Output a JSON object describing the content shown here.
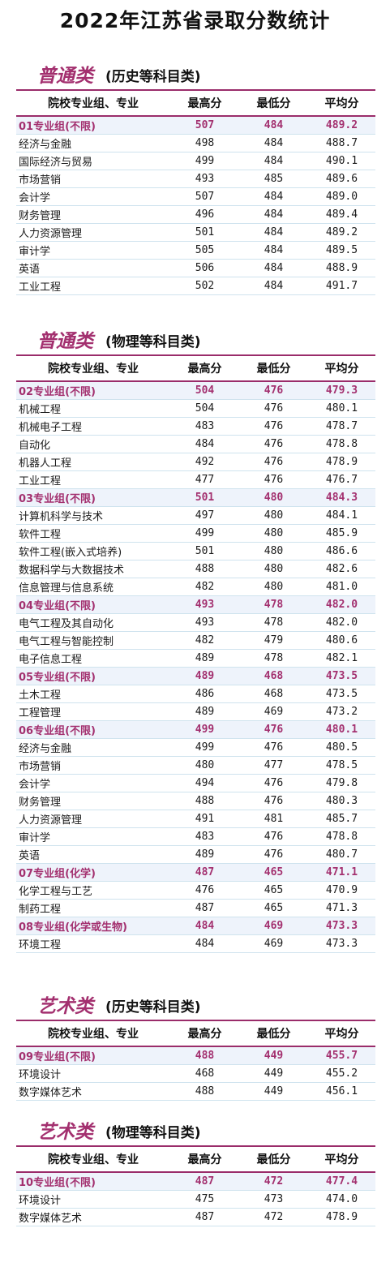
{
  "title": "2022年江苏省录取分数统计",
  "headers": {
    "major": "院校专业组、专业",
    "max": "最高分",
    "min": "最低分",
    "avg": "平均分"
  },
  "sections": [
    {
      "category": "普通类",
      "subject": "(历史等科目类)",
      "rows": [
        {
          "name": "01专业组(不限)",
          "max": "507",
          "min": "484",
          "avg": "489.2",
          "group": true
        },
        {
          "name": "经济与金融",
          "max": "498",
          "min": "484",
          "avg": "488.7"
        },
        {
          "name": "国际经济与贸易",
          "max": "499",
          "min": "484",
          "avg": "490.1"
        },
        {
          "name": "市场营销",
          "max": "493",
          "min": "485",
          "avg": "489.6"
        },
        {
          "name": "会计学",
          "max": "507",
          "min": "484",
          "avg": "489.0"
        },
        {
          "name": "财务管理",
          "max": "496",
          "min": "484",
          "avg": "489.4"
        },
        {
          "name": "人力资源管理",
          "max": "501",
          "min": "484",
          "avg": "489.2"
        },
        {
          "name": "审计学",
          "max": "505",
          "min": "484",
          "avg": "489.5"
        },
        {
          "name": "英语",
          "max": "506",
          "min": "484",
          "avg": "488.9"
        },
        {
          "name": "工业工程",
          "max": "502",
          "min": "484",
          "avg": "491.7"
        }
      ]
    },
    {
      "category": "普通类",
      "subject": "(物理等科目类)",
      "rows": [
        {
          "name": "02专业组(不限)",
          "max": "504",
          "min": "476",
          "avg": "479.3",
          "group": true
        },
        {
          "name": "机械工程",
          "max": "504",
          "min": "476",
          "avg": "480.1"
        },
        {
          "name": "机械电子工程",
          "max": "483",
          "min": "476",
          "avg": "478.7"
        },
        {
          "name": "自动化",
          "max": "484",
          "min": "476",
          "avg": "478.8"
        },
        {
          "name": "机器人工程",
          "max": "492",
          "min": "476",
          "avg": "478.9"
        },
        {
          "name": "工业工程",
          "max": "477",
          "min": "476",
          "avg": "476.7"
        },
        {
          "name": "03专业组(不限)",
          "max": "501",
          "min": "480",
          "avg": "484.3",
          "group": true
        },
        {
          "name": "计算机科学与技术",
          "max": "497",
          "min": "480",
          "avg": "484.1"
        },
        {
          "name": "软件工程",
          "max": "499",
          "min": "480",
          "avg": "485.9"
        },
        {
          "name": "软件工程(嵌入式培养)",
          "max": "501",
          "min": "480",
          "avg": "486.6"
        },
        {
          "name": "数据科学与大数据技术",
          "max": "488",
          "min": "480",
          "avg": "482.6"
        },
        {
          "name": "信息管理与信息系统",
          "max": "482",
          "min": "480",
          "avg": "481.0"
        },
        {
          "name": "04专业组(不限)",
          "max": "493",
          "min": "478",
          "avg": "482.0",
          "group": true
        },
        {
          "name": "电气工程及其自动化",
          "max": "493",
          "min": "478",
          "avg": "482.0"
        },
        {
          "name": "电气工程与智能控制",
          "max": "482",
          "min": "479",
          "avg": "480.6"
        },
        {
          "name": "电子信息工程",
          "max": "489",
          "min": "478",
          "avg": "482.1"
        },
        {
          "name": "05专业组(不限)",
          "max": "489",
          "min": "468",
          "avg": "473.5",
          "group": true
        },
        {
          "name": "土木工程",
          "max": "486",
          "min": "468",
          "avg": "473.5"
        },
        {
          "name": "工程管理",
          "max": "489",
          "min": "469",
          "avg": "473.2"
        },
        {
          "name": "06专业组(不限)",
          "max": "499",
          "min": "476",
          "avg": "480.1",
          "group": true
        },
        {
          "name": "经济与金融",
          "max": "499",
          "min": "476",
          "avg": "480.5"
        },
        {
          "name": "市场营销",
          "max": "480",
          "min": "477",
          "avg": "478.5"
        },
        {
          "name": "会计学",
          "max": "494",
          "min": "476",
          "avg": "479.8"
        },
        {
          "name": "财务管理",
          "max": "488",
          "min": "476",
          "avg": "480.3"
        },
        {
          "name": "人力资源管理",
          "max": "491",
          "min": "481",
          "avg": "485.7"
        },
        {
          "name": "审计学",
          "max": "483",
          "min": "476",
          "avg": "478.8"
        },
        {
          "name": "英语",
          "max": "489",
          "min": "476",
          "avg": "480.7"
        },
        {
          "name": "07专业组(化学)",
          "max": "487",
          "min": "465",
          "avg": "471.1",
          "group": true
        },
        {
          "name": "化学工程与工艺",
          "max": "476",
          "min": "465",
          "avg": "470.9"
        },
        {
          "name": "制药工程",
          "max": "487",
          "min": "465",
          "avg": "471.3"
        },
        {
          "name": "08专业组(化学或生物)",
          "max": "484",
          "min": "469",
          "avg": "473.3",
          "group": true
        },
        {
          "name": "环境工程",
          "max": "484",
          "min": "469",
          "avg": "473.3"
        }
      ]
    },
    {
      "category": "艺术类",
      "subject": "(历史等科目类)",
      "rows": [
        {
          "name": "09专业组(不限)",
          "max": "488",
          "min": "449",
          "avg": "455.7",
          "group": true
        },
        {
          "name": "环境设计",
          "max": "468",
          "min": "449",
          "avg": "455.2"
        },
        {
          "name": "数字媒体艺术",
          "max": "488",
          "min": "449",
          "avg": "456.1"
        }
      ]
    },
    {
      "category": "艺术类",
      "subject": "(物理等科目类)",
      "rows": [
        {
          "name": "10专业组(不限)",
          "max": "487",
          "min": "472",
          "avg": "477.4",
          "group": true
        },
        {
          "name": "环境设计",
          "max": "475",
          "min": "473",
          "avg": "474.0"
        },
        {
          "name": "数字媒体艺术",
          "max": "487",
          "min": "472",
          "avg": "478.9"
        }
      ]
    }
  ]
}
